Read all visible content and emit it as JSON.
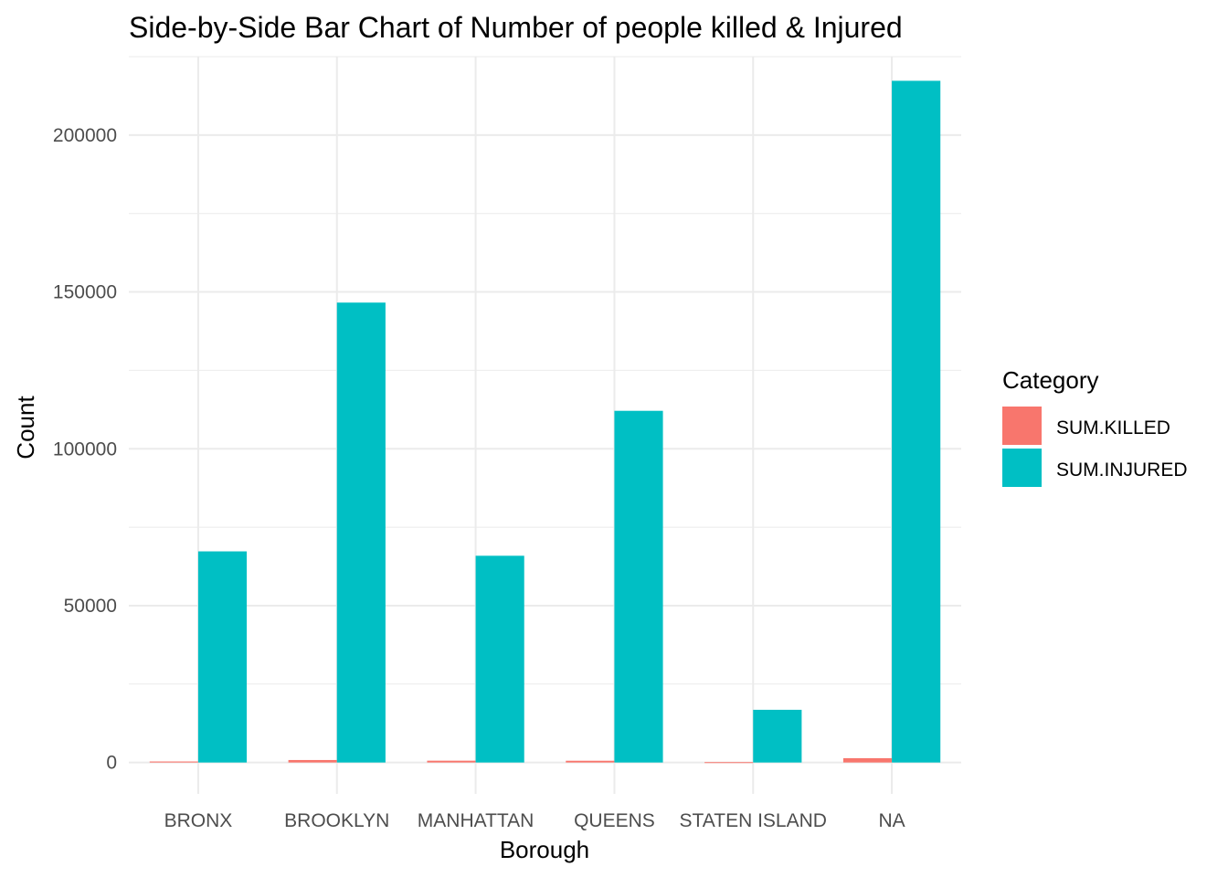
{
  "chart_data": {
    "type": "bar",
    "title": "Side-by-Side Bar Chart of Number of people killed & Injured",
    "xlabel": "Borough",
    "ylabel": "Count",
    "categories": [
      "BRONX",
      "BROOKLYN",
      "MANHATTAN",
      "QUEENS",
      "STATEN ISLAND",
      "NA"
    ],
    "series": [
      {
        "name": "SUM.KILLED",
        "color": "#F8766D",
        "values": [
          330,
          790,
          580,
          560,
          120,
          1380
        ]
      },
      {
        "name": "SUM.INJURED",
        "color": "#00BFC4",
        "values": [
          67300,
          146600,
          65900,
          112100,
          16800,
          217300
        ]
      }
    ],
    "ylim": [
      -10000,
      225000
    ],
    "yticks": [
      0,
      50000,
      100000,
      150000,
      200000
    ],
    "ytick_labels": [
      "0",
      "50000",
      "100000",
      "150000",
      "200000"
    ],
    "grid": true,
    "legend": {
      "title": "Category",
      "position": "right"
    }
  }
}
